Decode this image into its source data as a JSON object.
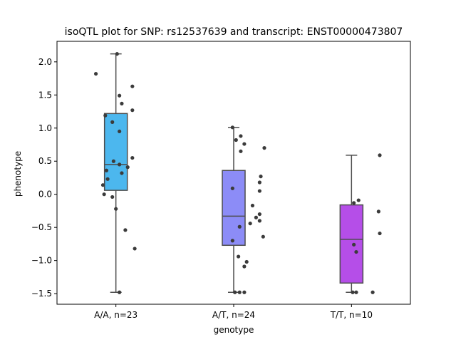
{
  "chart_data": {
    "type": "box",
    "title": "isoQTL plot for SNP: rs12537639 and transcript: ENST00000473807",
    "xlabel": "genotype",
    "ylabel": "phenotype",
    "ylim": [
      -1.66,
      2.31
    ],
    "yticks": [
      -1.5,
      -1.0,
      -0.5,
      0.0,
      0.5,
      1.0,
      1.5,
      2.0
    ],
    "ytick_labels": [
      "−1.5",
      "−1.0",
      "−0.5",
      "0.0",
      "0.5",
      "1.0",
      "1.5",
      "2.0"
    ],
    "grid": false,
    "categories": [
      "A/A, n=23",
      "A/T, n=24",
      "T/T, n=10"
    ],
    "colors": [
      "#4cb7ee",
      "#8c8cf7",
      "#b54ee8"
    ],
    "boxes": [
      {
        "category": "A/A, n=23",
        "whisker_low": -1.48,
        "q1": 0.06,
        "median": 0.45,
        "q3": 1.22,
        "whisker_high": 2.12
      },
      {
        "category": "A/T, n=24",
        "whisker_low": -1.48,
        "q1": -0.77,
        "median": -0.33,
        "q3": 0.36,
        "whisker_high": 1.01
      },
      {
        "category": "T/T, n=10",
        "whisker_low": -1.48,
        "q1": -1.34,
        "median": -0.68,
        "q3": -0.16,
        "whisker_high": 0.59
      }
    ],
    "points": [
      {
        "category": "A/A, n=23",
        "values": [
          2.12,
          1.82,
          1.63,
          1.49,
          1.37,
          1.27,
          1.19,
          1.09,
          0.95,
          0.55,
          0.5,
          0.45,
          0.41,
          0.36,
          0.32,
          0.23,
          0.14,
          0.0,
          -0.04,
          -0.22,
          -0.54,
          -0.82,
          -1.48
        ],
        "jitter": [
          0.01,
          -0.17,
          0.14,
          0.03,
          0.05,
          0.14,
          -0.09,
          -0.03,
          0.03,
          0.14,
          -0.02,
          0.03,
          0.1,
          -0.08,
          0.05,
          -0.07,
          -0.11,
          -0.1,
          -0.03,
          0.0,
          0.08,
          0.16,
          0.03
        ]
      },
      {
        "category": "A/T, n=24",
        "values": [
          1.01,
          0.88,
          0.82,
          0.76,
          0.7,
          0.65,
          0.27,
          0.18,
          0.09,
          0.05,
          -0.17,
          -0.3,
          -0.35,
          -0.4,
          -0.44,
          -0.49,
          -0.64,
          -0.7,
          -0.94,
          -1.02,
          -1.09,
          -1.48,
          -1.48,
          -1.48
        ],
        "jitter": [
          -0.01,
          0.06,
          0.02,
          0.09,
          0.26,
          0.06,
          0.23,
          0.22,
          -0.01,
          0.22,
          0.16,
          0.22,
          0.19,
          0.22,
          0.14,
          0.05,
          0.25,
          -0.01,
          0.04,
          0.11,
          0.09,
          0.01,
          0.05,
          0.09
        ]
      },
      {
        "category": "T/T, n=10",
        "values": [
          0.59,
          -0.09,
          -0.13,
          -0.26,
          -0.59,
          -0.76,
          -0.87,
          -1.48,
          -1.48,
          -1.48
        ],
        "jitter": [
          0.24,
          0.06,
          0.02,
          0.23,
          0.24,
          0.02,
          0.04,
          0.01,
          0.04,
          0.18
        ]
      }
    ]
  }
}
